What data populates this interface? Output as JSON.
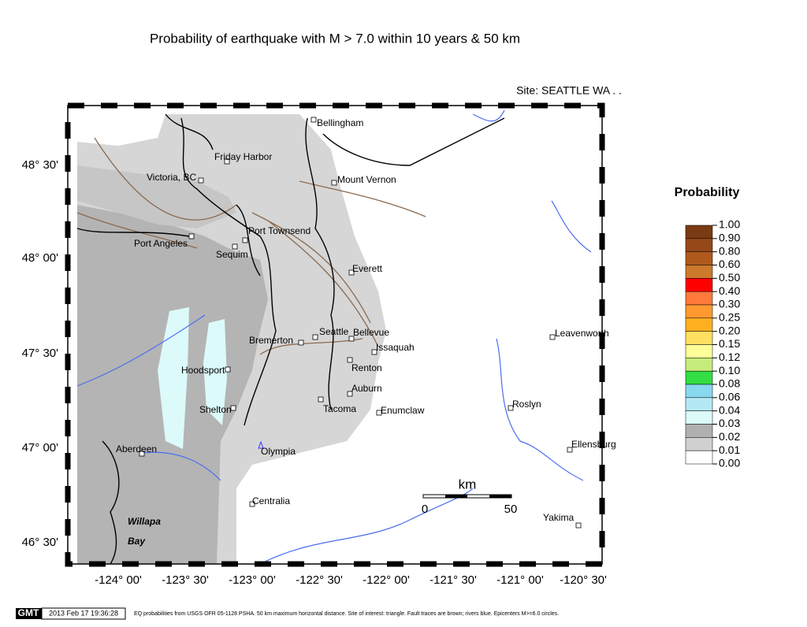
{
  "header": {
    "title": "Probability of earthquake with M > 7.0 within 10 years & 50 km",
    "site": "Site: SEATTLE  WA . ."
  },
  "map": {
    "cities": [
      "Bellingham",
      "Friday Harbor",
      "Victoria, BC",
      "Mount Vernon",
      "Port Townsend",
      "Port Angeles",
      "Sequim",
      "Everett",
      "Seattle",
      "Bellevue",
      "Bremerton",
      "Issaquah",
      "Renton",
      "Hoodsport",
      "Auburn",
      "Shelton",
      "Tacoma",
      "Enumclaw",
      "Olympia",
      "Aberdeen",
      "Centralia",
      "Leavenworth",
      "Roslyn",
      "Ellensburg",
      "Yakima",
      "Willapa",
      "Bay"
    ],
    "lat_ticks": [
      "48° 30'",
      "48° 00'",
      "47° 30'",
      "47° 00'",
      "46° 30'"
    ],
    "lon_ticks": [
      "-124° 00'",
      "-123° 30'",
      "-123° 00'",
      "-122° 30'",
      "-122° 00'",
      "-121° 30'",
      "-121° 00'",
      "-120° 30'"
    ],
    "scale_bar": {
      "unit": "km",
      "start": "0",
      "end": "50"
    }
  },
  "legend": {
    "title": "Probability",
    "labels": [
      "1.00",
      "0.90",
      "0.80",
      "0.60",
      "0.50",
      "0.40",
      "0.30",
      "0.25",
      "0.20",
      "0.15",
      "0.12",
      "0.10",
      "0.08",
      "0.06",
      "0.04",
      "0.03",
      "0.02",
      "0.01",
      "0.00"
    ],
    "colors": [
      "#7a3a14",
      "#954818",
      "#b0591c",
      "#cc7a2c",
      "#ff0000",
      "#ff7a3c",
      "#ff9a30",
      "#ffb020",
      "#ffe060",
      "#ffff99",
      "#c8ec7c",
      "#33dd44",
      "#88d8f0",
      "#b4e8f4",
      "#dcfafa",
      "#b0b0b0",
      "#d0d0d0",
      "#ffffff"
    ]
  },
  "footer": {
    "logo": "GMT",
    "timestamp": "2013 Feb 17 19:36:28",
    "caption": "EQ probabilities from USGS OFR 05-1128 PSHA. 50 km maximum horizontal distance. Site of interest: triangle. Fault traces are brown; rivers blue. Epicenters M>=6.0 circles."
  }
}
